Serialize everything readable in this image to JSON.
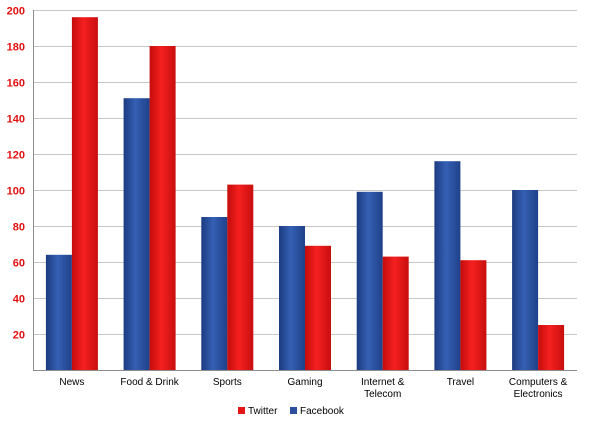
{
  "chart_data": {
    "type": "bar",
    "categories": [
      "News",
      "Food & Drink",
      "Sports",
      "Gaming",
      "Internet & Telecom",
      "Travel",
      "Computers & Electronics"
    ],
    "category_lines": [
      [
        "News"
      ],
      [
        "Food & Drink"
      ],
      [
        "Sports"
      ],
      [
        "Gaming"
      ],
      [
        "Internet &",
        "Telecom"
      ],
      [
        "Travel"
      ],
      [
        "Computers &",
        "Electronics"
      ]
    ],
    "series": [
      {
        "name": "Facebook",
        "color": "#2a4f9e",
        "values": [
          64,
          151,
          85,
          80,
          99,
          116,
          100
        ]
      },
      {
        "name": "Twitter",
        "color": "#e41515",
        "values": [
          196,
          180,
          103,
          69,
          63,
          61,
          25
        ]
      }
    ],
    "legend_order": [
      "Twitter",
      "Facebook"
    ],
    "ylim": [
      0,
      200
    ],
    "yticks": [
      20,
      40,
      60,
      80,
      100,
      120,
      140,
      160,
      180,
      200
    ],
    "title": "",
    "xlabel": "",
    "ylabel": "",
    "grid": true,
    "legend_position": "bottom"
  }
}
